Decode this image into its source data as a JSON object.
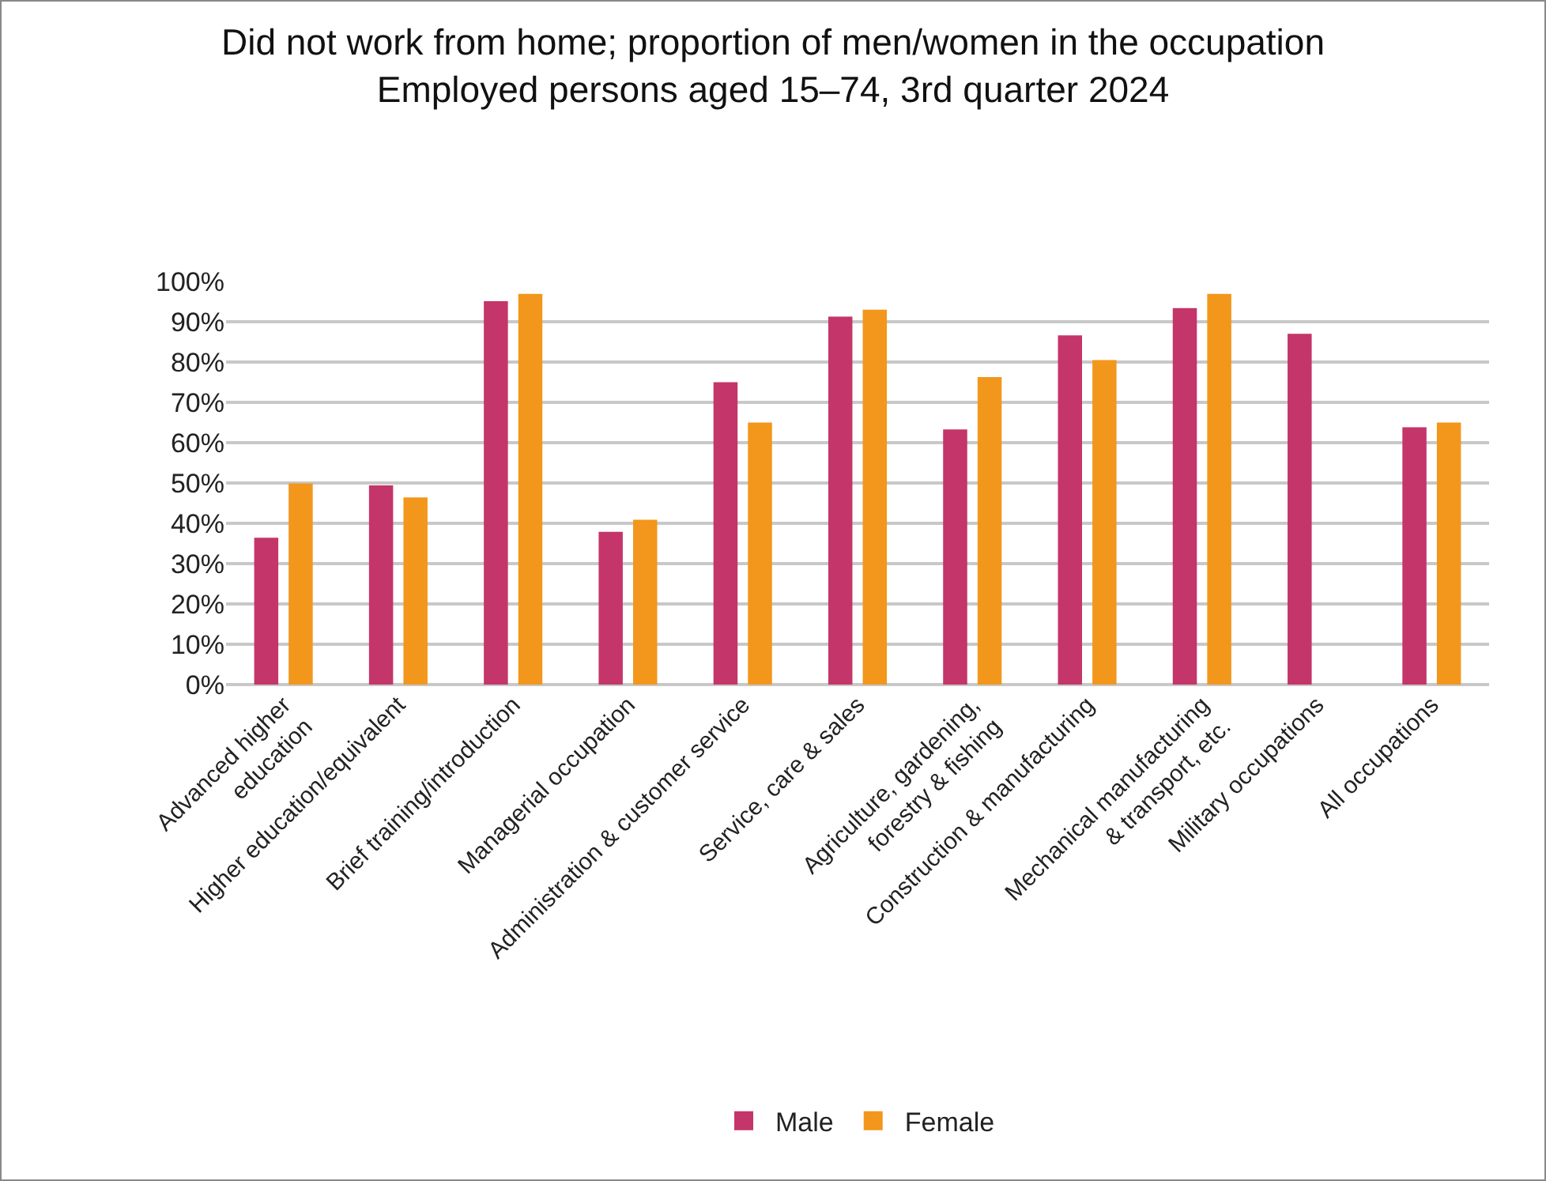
{
  "chart_data": {
    "type": "bar",
    "title": "Did not work from home; proportion of men/women in the occupation\nEmployed persons aged 15–74, 3rd quarter 2024",
    "categories": [
      "Advanced higher\neducation",
      "Higher education/equivalent",
      "Brief training/introduction",
      "Managerial occupation",
      "Administration & customer service",
      "Service, care & sales",
      "Agriculture, gardening,\nforestry & fishing",
      "Construction & manufacturing",
      "Mechanical manufacturing\n& transport, etc.",
      "Military occupations",
      "All occupations"
    ],
    "series": [
      {
        "name": "Male",
        "color": "#c4356a",
        "values": [
          36.4,
          49.4,
          95.1,
          37.9,
          75.0,
          91.3,
          63.3,
          86.6,
          93.4,
          87.0,
          63.8
        ]
      },
      {
        "name": "Female",
        "color": "#f2971c",
        "values": [
          49.9,
          46.4,
          96.9,
          40.9,
          65.0,
          93.0,
          76.3,
          80.5,
          96.9,
          null,
          65.0
        ]
      }
    ],
    "ylim": [
      0,
      100
    ],
    "yticks": [
      {
        "value": 0,
        "label": "0%"
      },
      {
        "value": 10,
        "label": "10%"
      },
      {
        "value": 20,
        "label": "20%"
      },
      {
        "value": 30,
        "label": "30%"
      },
      {
        "value": 40,
        "label": "40%"
      },
      {
        "value": 50,
        "label": "50%"
      },
      {
        "value": 60,
        "label": "60%"
      },
      {
        "value": 70,
        "label": "70%"
      },
      {
        "value": 80,
        "label": "80%"
      },
      {
        "value": 90,
        "label": "90%"
      },
      {
        "value": 100,
        "label": "100%"
      }
    ],
    "grid": "y",
    "legend": "bottom"
  }
}
